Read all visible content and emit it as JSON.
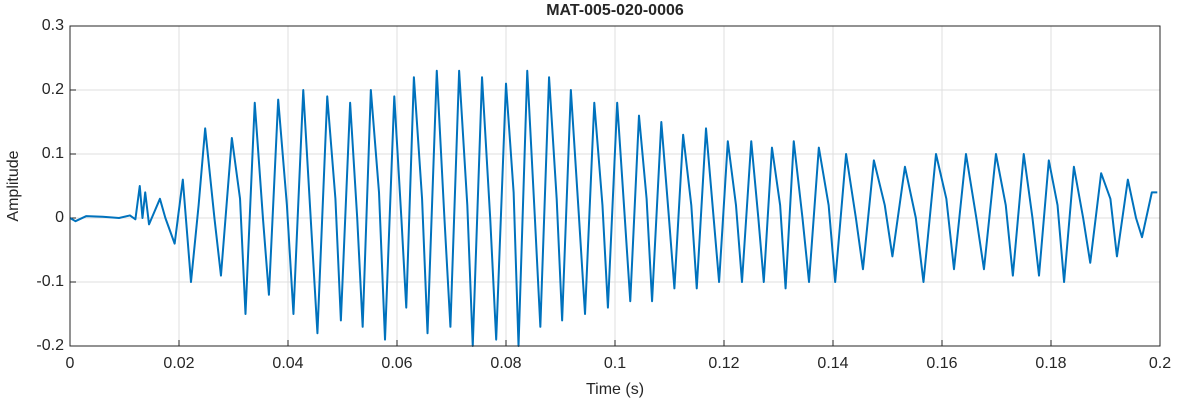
{
  "chart_data": {
    "type": "line",
    "title": "MAT-005-020-0006",
    "xlabel": "Time (s)",
    "ylabel": "Amplitude",
    "x": [
      0,
      0.001,
      0.003,
      0.006,
      0.009,
      0.011,
      0.012,
      0.0128,
      0.0133,
      0.0138,
      0.0145,
      0.0155,
      0.0165,
      0.0175,
      0.0192,
      0.0207,
      0.0222,
      0.0236,
      0.0248,
      0.0265,
      0.0277,
      0.0297,
      0.0312,
      0.0322,
      0.0339,
      0.0354,
      0.0365,
      0.0382,
      0.0398,
      0.041,
      0.0428,
      0.0443,
      0.0454,
      0.0472,
      0.0487,
      0.0497,
      0.0514,
      0.0527,
      0.0537,
      0.0552,
      0.0567,
      0.0578,
      0.0595,
      0.0608,
      0.0617,
      0.0631,
      0.0646,
      0.0656,
      0.0673,
      0.0687,
      0.0698,
      0.0714,
      0.0729,
      0.0739,
      0.0756,
      0.0771,
      0.0782,
      0.08,
      0.0814,
      0.0823,
      0.0839,
      0.0853,
      0.0863,
      0.0879,
      0.0893,
      0.0903,
      0.0919,
      0.0934,
      0.0945,
      0.0962,
      0.0977,
      0.0987,
      0.1004,
      0.1018,
      0.1028,
      0.1044,
      0.1058,
      0.1068,
      0.1085,
      0.1099,
      0.1109,
      0.1125,
      0.114,
      0.115,
      0.1167,
      0.1181,
      0.1191,
      0.1207,
      0.1222,
      0.1233,
      0.125,
      0.1263,
      0.1273,
      0.1288,
      0.1303,
      0.1313,
      0.1328,
      0.1344,
      0.1356,
      0.1374,
      0.1392,
      0.1404,
      0.1424,
      0.1442,
      0.1455,
      0.1475,
      0.1495,
      0.1509,
      0.1532,
      0.1552,
      0.1566,
      0.1589,
      0.1608,
      0.1622,
      0.1644,
      0.1663,
      0.1677,
      0.1699,
      0.1717,
      0.173,
      0.175,
      0.1766,
      0.1778,
      0.1796,
      0.1812,
      0.1824,
      0.1842,
      0.1859,
      0.1872,
      0.1892,
      0.1909,
      0.1921,
      0.1941,
      0.1956,
      0.1967,
      0.1985,
      0.1995
    ],
    "series": [
      {
        "color": "#0072bd",
        "values": [
          0,
          -0.005,
          0.003,
          0.002,
          0,
          0.004,
          -0.002,
          0.05,
          0,
          0.04,
          -0.01,
          0.01,
          0.03,
          0,
          -0.04,
          0.06,
          -0.1,
          0.02,
          0.14,
          0,
          -0.09,
          0.125,
          0.03,
          -0.15,
          0.18,
          0,
          -0.12,
          0.185,
          0.02,
          -0.15,
          0.2,
          -0.02,
          -0.18,
          0.19,
          0.03,
          -0.16,
          0.18,
          0,
          -0.17,
          0.2,
          0.04,
          -0.19,
          0.19,
          0,
          -0.14,
          0.22,
          0.03,
          -0.18,
          0.23,
          0,
          -0.17,
          0.23,
          0.02,
          -0.2,
          0.22,
          0,
          -0.19,
          0.21,
          0.04,
          -0.2,
          0.23,
          0,
          -0.17,
          0.22,
          0.03,
          -0.16,
          0.2,
          0,
          -0.15,
          0.18,
          0.02,
          -0.14,
          0.18,
          0,
          -0.13,
          0.16,
          0.03,
          -0.13,
          0.15,
          0,
          -0.11,
          0.13,
          0.02,
          -0.11,
          0.14,
          0,
          -0.1,
          0.12,
          0.02,
          -0.1,
          0.12,
          0,
          -0.1,
          0.11,
          0.02,
          -0.11,
          0.12,
          0,
          -0.1,
          0.11,
          0.02,
          -0.1,
          0.1,
          0,
          -0.08,
          0.09,
          0.02,
          -0.06,
          0.08,
          0,
          -0.1,
          0.1,
          0.03,
          -0.08,
          0.1,
          0,
          -0.08,
          0.1,
          0.02,
          -0.09,
          0.1,
          0,
          -0.09,
          0.09,
          0.02,
          -0.1,
          0.08,
          0,
          -0.07,
          0.07,
          0.03,
          -0.06,
          0.06,
          0,
          -0.03,
          0.04,
          0.04
        ]
      }
    ],
    "xlim": [
      0,
      0.2
    ],
    "ylim": [
      -0.2,
      0.3
    ],
    "xticks": [
      0,
      0.02,
      0.04,
      0.06,
      0.08,
      0.1,
      0.12,
      0.14,
      0.16,
      0.18,
      0.2
    ],
    "yticks": [
      -0.2,
      -0.1,
      0,
      0.1,
      0.2,
      0.3
    ],
    "grid": true
  }
}
